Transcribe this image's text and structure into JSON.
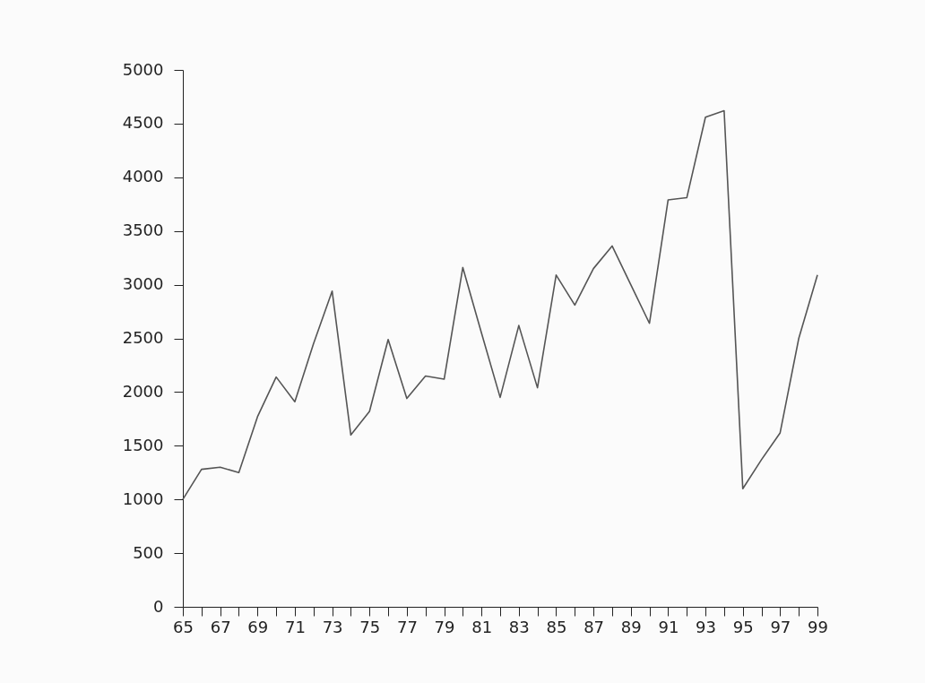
{
  "chart_data": {
    "type": "line",
    "x": [
      65,
      66,
      67,
      68,
      69,
      70,
      71,
      72,
      73,
      74,
      75,
      76,
      77,
      78,
      79,
      80,
      81,
      82,
      83,
      84,
      85,
      86,
      87,
      88,
      89,
      90,
      91,
      92,
      93,
      94,
      95,
      96,
      97,
      98,
      99
    ],
    "series": [
      {
        "color": "#555555",
        "values": [
          1000,
          1280,
          1300,
          1250,
          1770,
          2140,
          1910,
          2450,
          2940,
          1600,
          1820,
          2490,
          1940,
          2150,
          2120,
          3160,
          2550,
          1950,
          2620,
          2040,
          3090,
          2810,
          3150,
          3360,
          3000,
          2640,
          3790,
          3810,
          4560,
          4620,
          1100,
          1370,
          1620,
          2500,
          3090
        ]
      }
    ],
    "xlim": [
      65,
      99
    ],
    "xticks": [
      65,
      {
        "value": 66,
        "label": null
      },
      67,
      {
        "value": 68,
        "label": null
      },
      69,
      {
        "value": 70,
        "label": null
      },
      71,
      {
        "value": 72,
        "label": null
      },
      73,
      {
        "value": 74,
        "label": null
      },
      75,
      {
        "value": 76,
        "label": null
      },
      77,
      {
        "value": 78,
        "label": null
      },
      79,
      {
        "value": 80,
        "label": null
      },
      81,
      {
        "value": 82,
        "label": null
      },
      83,
      {
        "value": 84,
        "label": null
      },
      85,
      {
        "value": 86,
        "label": null
      },
      87,
      {
        "value": 88,
        "label": null
      },
      89,
      {
        "value": 90,
        "label": null
      },
      91,
      {
        "value": 92,
        "label": null
      },
      93,
      {
        "value": 94,
        "label": null
      },
      95,
      {
        "value": 96,
        "label": null
      },
      97,
      {
        "value": 98,
        "label": null
      },
      99
    ],
    "ylim": [
      0,
      5000
    ],
    "yticks": [
      0,
      500,
      1000,
      1500,
      2000,
      2500,
      3000,
      3500,
      4000,
      4500,
      5000
    ],
    "grid": false,
    "marker": "none",
    "line_style": "solid"
  }
}
